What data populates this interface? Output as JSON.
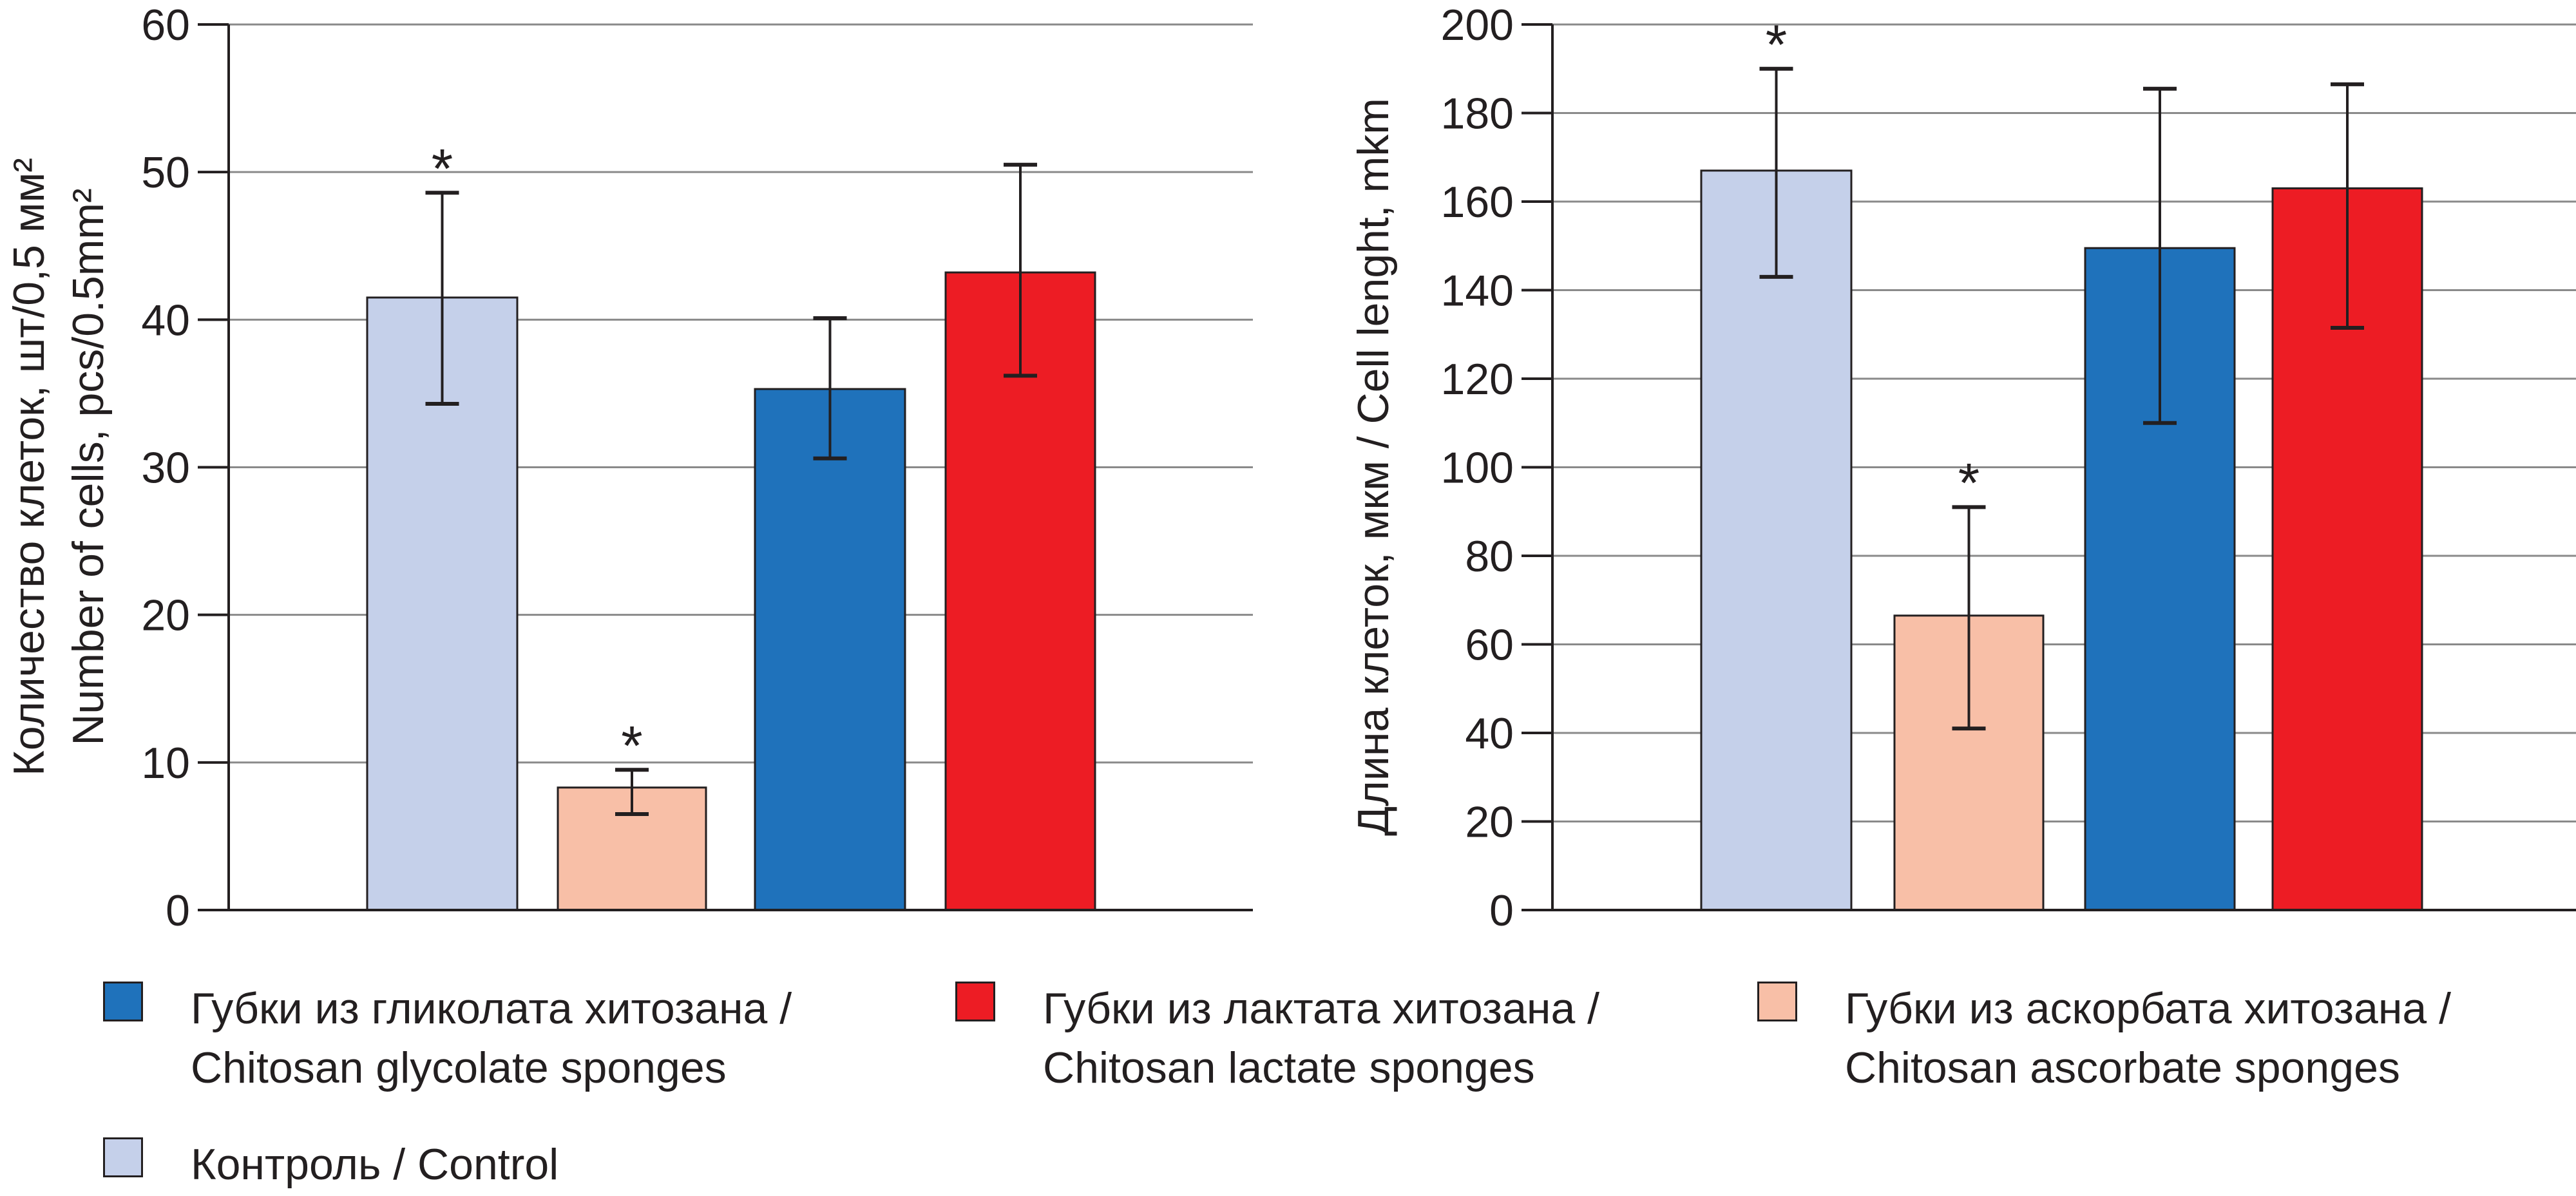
{
  "chart_data": [
    {
      "type": "bar",
      "ylabel": "Количество клеток, шт/0,5 мм²",
      "ylabel2": "Number of cells, pcs/0.5mm²",
      "ylim": [
        0,
        60
      ],
      "yticks": [
        0,
        10,
        20,
        30,
        40,
        50,
        60
      ],
      "grid": true,
      "series": [
        {
          "name": "Контроль / Control",
          "value": 41.5,
          "err_low": 34.3,
          "err_high": 48.6,
          "significant": true
        },
        {
          "name": "Губки из аскорбата хитозана / Chitosan ascorbate sponges",
          "value": 8.3,
          "err_low": 6.5,
          "err_high": 9.5,
          "significant": true
        },
        {
          "name": "Губки из гликолата хитозана / Chitosan glycolate sponges",
          "value": 35.3,
          "err_low": 30.6,
          "err_high": 40.1,
          "significant": false
        },
        {
          "name": "Губки из лактата хитозана / Chitosan lactate sponges",
          "value": 43.2,
          "err_low": 36.2,
          "err_high": 50.5,
          "significant": false
        }
      ]
    },
    {
      "type": "bar",
      "ylabel": "Длина клеток, мкм / Cell lenght, mkm",
      "ylim": [
        0,
        200
      ],
      "yticks": [
        0,
        20,
        40,
        60,
        80,
        100,
        120,
        140,
        160,
        180,
        200
      ],
      "grid": true,
      "series": [
        {
          "name": "Контроль / Control",
          "value": 167,
          "err_low": 143,
          "err_high": 190,
          "significant": true
        },
        {
          "name": "Губки из аскорбата хитозана / Chitosan ascorbate sponges",
          "value": 66.5,
          "err_low": 41,
          "err_high": 91,
          "significant": true
        },
        {
          "name": "Губки из гликолата хитозана / Chitosan glycolate sponges",
          "value": 149.5,
          "err_low": 110,
          "err_high": 185.5,
          "significant": false
        },
        {
          "name": "Губки из лактата хитозана / Chitosan lactate sponges",
          "value": 163,
          "err_low": 131.5,
          "err_high": 186.5,
          "significant": false
        }
      ]
    }
  ],
  "significance_marker": "*",
  "colors": [
    "#c5d0ea",
    "#f8bfa7",
    "#1f72bb",
    "#ed1c24"
  ],
  "legend": {
    "items": [
      {
        "line1": "Губки из гликолата хитозана /",
        "line2": "Chitosan glycolate sponges",
        "color": "#1f72bb"
      },
      {
        "line1": "Губки из лактата хитозана /",
        "line2": "Chitosan lactate sponges",
        "color": "#ed1c24"
      },
      {
        "line1": "Губки из аскорбата хитозана /",
        "line2": "Chitosan ascorbate sponges",
        "color": "#f8bfa7"
      },
      {
        "line1": "Контроль / Control",
        "color": "#c5d0ea"
      }
    ]
  }
}
